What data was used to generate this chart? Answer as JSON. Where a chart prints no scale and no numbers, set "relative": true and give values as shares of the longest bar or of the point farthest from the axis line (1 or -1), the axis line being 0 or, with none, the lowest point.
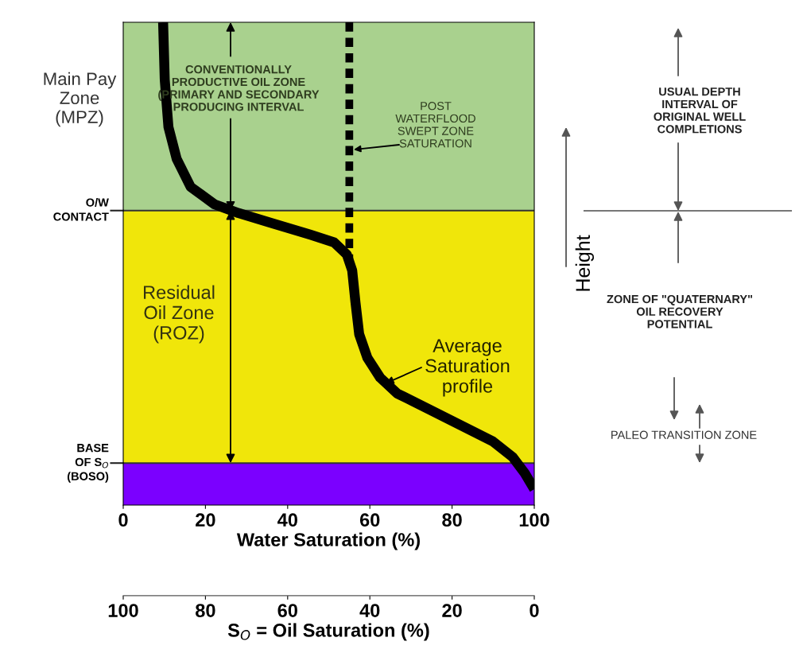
{
  "chart_data": {
    "type": "line",
    "relative": true,
    "xlabel": "Water Saturation (%)",
    "ylabel": "Height",
    "x2label": "S$_{O}$ = Oil Saturation (%)",
    "xlim": [
      0,
      100
    ],
    "xticks": [
      0,
      20,
      40,
      60,
      80,
      100
    ],
    "x2lim": [
      100,
      0
    ],
    "x2ticks": [
      100,
      80,
      60,
      40,
      20,
      0
    ],
    "series": [
      {
        "color": "#000000",
        "line_style": "solid",
        "x": [
          9.7,
          10.1,
          11.0,
          13.0,
          16.4,
          22.2,
          28.0,
          35.8,
          45.5,
          51.3,
          54.4,
          55.7,
          56.5,
          57.4,
          59.4,
          62.5,
          66.7,
          74.5,
          82.2,
          89.9,
          94.8,
          97.7,
          100
        ],
        "values": [
          1.0,
          0.881,
          0.783,
          0.717,
          0.659,
          0.623,
          0.605,
          0.585,
          0.56,
          0.544,
          0.519,
          0.486,
          0.42,
          0.354,
          0.305,
          0.264,
          0.231,
          0.198,
          0.165,
          0.132,
          0.099,
          0.066,
          0.033
        ]
      },
      {
        "color": "#000000",
        "line_style": "dashed",
        "x": [
          55,
          55
        ],
        "values": [
          1.0,
          0.51
        ]
      }
    ],
    "bands": [
      {
        "axis": "y",
        "from": 0.61,
        "to": 1.0,
        "color": "#a9d18e"
      },
      {
        "axis": "y",
        "from": 0.087,
        "to": 0.61,
        "color": "#f0e60a"
      },
      {
        "axis": "y",
        "from": 0,
        "to": 0.087,
        "color": "#7b00ff"
      }
    ],
    "ref_lines": [
      {
        "axis": "y",
        "value": 0.61,
        "label": "O/W\nCONTACT"
      },
      {
        "axis": "y",
        "value": 0.087,
        "label": "BASE\nOF S$_{O}$\n(BOSO)"
      }
    ],
    "annotations": [
      "Main Pay\nZone\n(MPZ)",
      "CONVENTIONALLY\nPRODUCTIVE OIL ZONE\n(PRIMARY AND SECONDARY\nPRODUCING INTERVAL",
      "POST\nWATERFLOOD\nSWEPT ZONE\nSATURATION",
      "Residual\nOil Zone\n(ROZ)",
      "Average\nSaturation\nprofile",
      "USUAL DEPTH\nINTERVAL OF\nORIGINAL WELL\nCOMPLETIONS",
      "ZONE OF \"QUATERNARY\"\nOIL RECOVERY\nPOTENTIAL",
      "PALEO TRANSITION ZONE"
    ]
  }
}
